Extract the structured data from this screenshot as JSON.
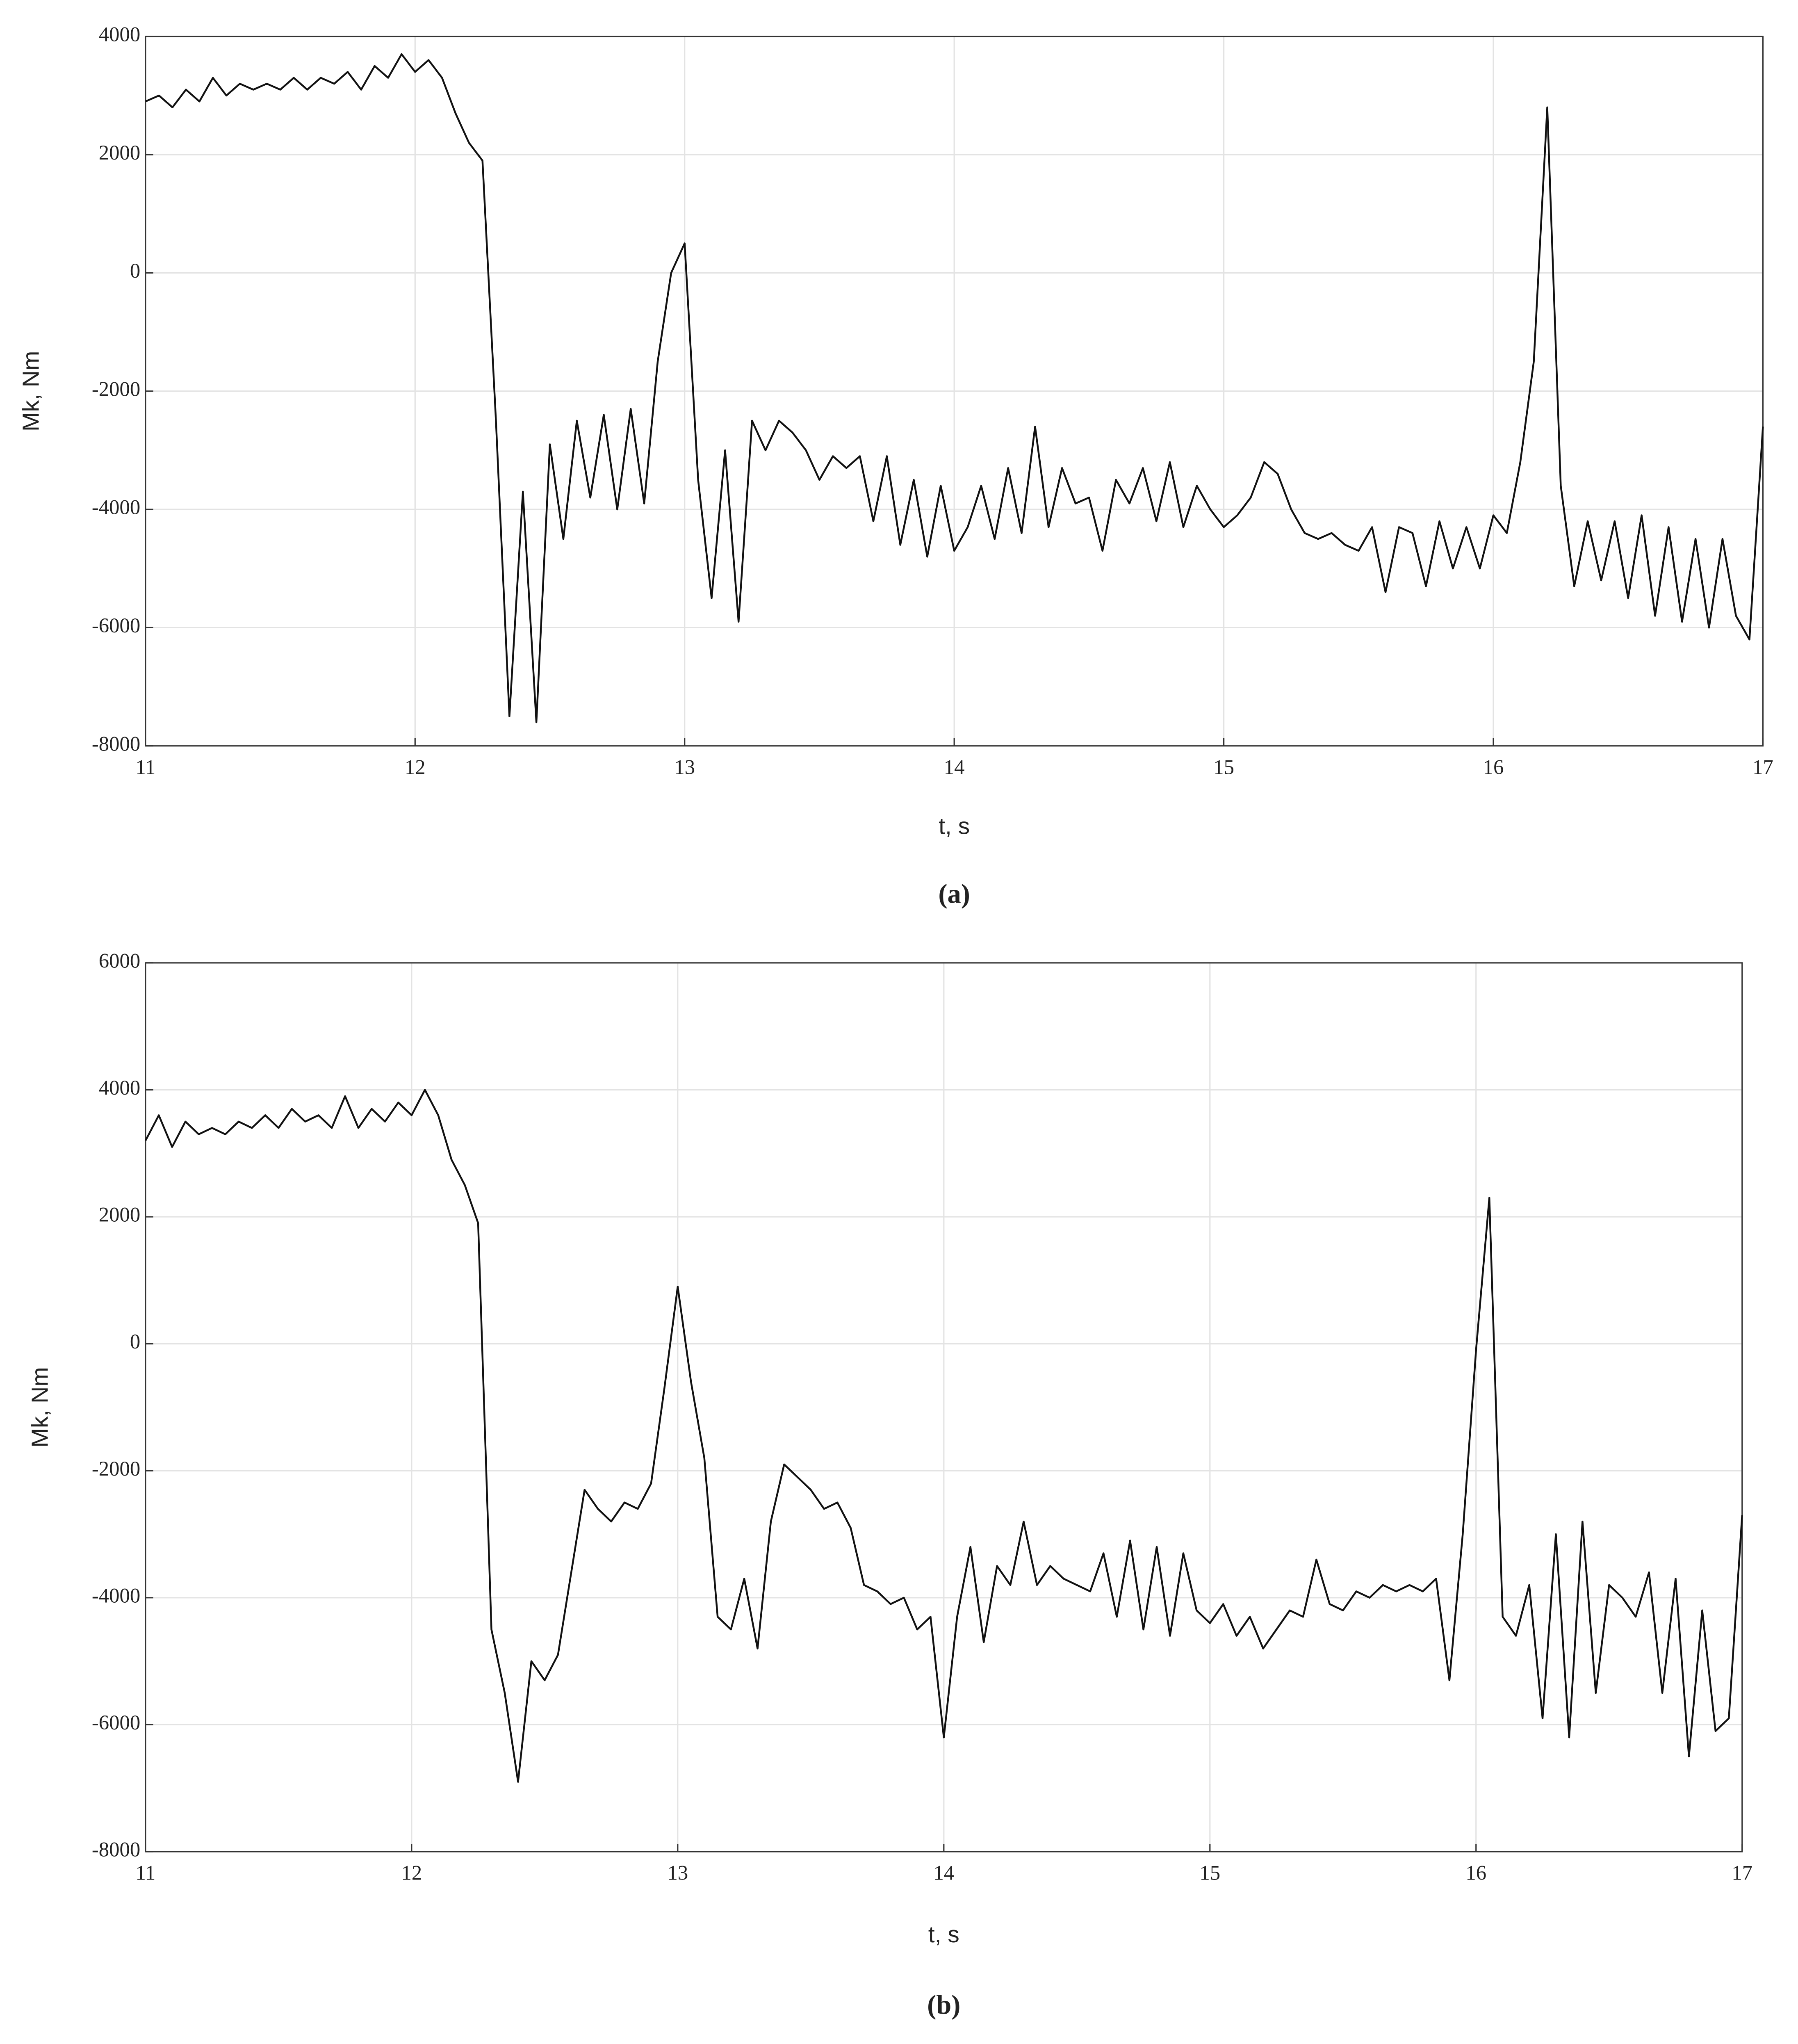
{
  "chart_data": [
    {
      "type": "line",
      "caption": "(a)",
      "x_label": "t, s",
      "y_label": "Mk, Nm",
      "xlim": [
        11,
        17
      ],
      "ylim": [
        -8000,
        4000
      ],
      "xticks": [
        11,
        12,
        13,
        14,
        15,
        16,
        17
      ],
      "yticks": [
        -8000,
        -6000,
        -4000,
        -2000,
        0,
        2000,
        4000
      ],
      "grid": true,
      "x": [
        11,
        11.05,
        11.1,
        11.15,
        11.2,
        11.25,
        11.3,
        11.35,
        11.4,
        11.45,
        11.5,
        11.55,
        11.6,
        11.65,
        11.7,
        11.75,
        11.8,
        11.85,
        11.9,
        11.95,
        12,
        12.05,
        12.1,
        12.15,
        12.2,
        12.25,
        12.3,
        12.35,
        12.4,
        12.45,
        12.5,
        12.55,
        12.6,
        12.65,
        12.7,
        12.75,
        12.8,
        12.85,
        12.9,
        12.95,
        13,
        13.05,
        13.1,
        13.15,
        13.2,
        13.25,
        13.3,
        13.35,
        13.4,
        13.45,
        13.5,
        13.55,
        13.6,
        13.65,
        13.7,
        13.75,
        13.8,
        13.85,
        13.9,
        13.95,
        14,
        14.05,
        14.1,
        14.15,
        14.2,
        14.25,
        14.3,
        14.35,
        14.4,
        14.45,
        14.5,
        14.55,
        14.6,
        14.65,
        14.7,
        14.75,
        14.8,
        14.85,
        14.9,
        14.95,
        15,
        15.05,
        15.1,
        15.15,
        15.2,
        15.25,
        15.3,
        15.35,
        15.4,
        15.45,
        15.5,
        15.55,
        15.6,
        15.65,
        15.7,
        15.75,
        15.8,
        15.85,
        15.9,
        15.95,
        16,
        16.05,
        16.1,
        16.15,
        16.2,
        16.25,
        16.3,
        16.35,
        16.4,
        16.45,
        16.5,
        16.55,
        16.6,
        16.65,
        16.7,
        16.75,
        16.8,
        16.85,
        16.9,
        16.95,
        17
      ],
      "series": [
        {
          "color": "#111111",
          "values": [
            2900,
            3000,
            2800,
            3100,
            2900,
            3300,
            3000,
            3200,
            3100,
            3200,
            3100,
            3300,
            3100,
            3300,
            3200,
            3400,
            3100,
            3500,
            3300,
            3700,
            3400,
            3600,
            3300,
            2700,
            2200,
            1900,
            -2500,
            -7500,
            -3700,
            -7600,
            -2900,
            -4500,
            -2500,
            -3800,
            -2400,
            -4000,
            -2300,
            -3900,
            -1500,
            0,
            500,
            -3500,
            -5500,
            -3000,
            -5900,
            -2500,
            -3000,
            -2500,
            -2700,
            -3000,
            -3500,
            -3100,
            -3300,
            -3100,
            -4200,
            -3100,
            -4600,
            -3500,
            -4800,
            -3600,
            -4700,
            -4300,
            -3600,
            -4500,
            -3300,
            -4400,
            -2600,
            -4300,
            -3300,
            -3900,
            -3800,
            -4700,
            -3500,
            -3900,
            -3300,
            -4200,
            -3200,
            -4300,
            -3600,
            -4000,
            -4300,
            -4100,
            -3800,
            -3200,
            -3400,
            -4000,
            -4400,
            -4500,
            -4400,
            -4600,
            -4700,
            -4300,
            -5400,
            -4300,
            -4400,
            -5300,
            -4200,
            -5000,
            -4300,
            -5000,
            -4100,
            -4400,
            -3200,
            -1500,
            2800,
            -3600,
            -5300,
            -4200,
            -5200,
            -4200,
            -5500,
            -4100,
            -5800,
            -4300,
            -5900,
            -4500,
            -6000,
            -4500,
            -5800,
            -6200,
            -2600
          ]
        }
      ]
    },
    {
      "type": "line",
      "caption": "(b)",
      "x_label": "t, s",
      "y_label": "Mk, Nm",
      "xlim": [
        11,
        17
      ],
      "ylim": [
        -8000,
        6000
      ],
      "xticks": [
        11,
        12,
        13,
        14,
        15,
        16,
        17
      ],
      "yticks": [
        -8000,
        -6000,
        -4000,
        -2000,
        0,
        2000,
        4000,
        6000
      ],
      "grid": true,
      "x": [
        11,
        11.05,
        11.1,
        11.15,
        11.2,
        11.25,
        11.3,
        11.35,
        11.4,
        11.45,
        11.5,
        11.55,
        11.6,
        11.65,
        11.7,
        11.75,
        11.8,
        11.85,
        11.9,
        11.95,
        12,
        12.05,
        12.1,
        12.15,
        12.2,
        12.25,
        12.3,
        12.35,
        12.4,
        12.45,
        12.5,
        12.55,
        12.6,
        12.65,
        12.7,
        12.75,
        12.8,
        12.85,
        12.9,
        12.95,
        13,
        13.05,
        13.1,
        13.15,
        13.2,
        13.25,
        13.3,
        13.35,
        13.4,
        13.45,
        13.5,
        13.55,
        13.6,
        13.65,
        13.7,
        13.75,
        13.8,
        13.85,
        13.9,
        13.95,
        14,
        14.05,
        14.1,
        14.15,
        14.2,
        14.25,
        14.3,
        14.35,
        14.4,
        14.45,
        14.5,
        14.55,
        14.6,
        14.65,
        14.7,
        14.75,
        14.8,
        14.85,
        14.9,
        14.95,
        15,
        15.05,
        15.1,
        15.15,
        15.2,
        15.25,
        15.3,
        15.35,
        15.4,
        15.45,
        15.5,
        15.55,
        15.6,
        15.65,
        15.7,
        15.75,
        15.8,
        15.85,
        15.9,
        15.95,
        16,
        16.05,
        16.1,
        16.15,
        16.2,
        16.25,
        16.3,
        16.35,
        16.4,
        16.45,
        16.5,
        16.55,
        16.6,
        16.65,
        16.7,
        16.75,
        16.8,
        16.85,
        16.9,
        16.95,
        17
      ],
      "series": [
        {
          "color": "#111111",
          "values": [
            3200,
            3600,
            3100,
            3500,
            3300,
            3400,
            3300,
            3500,
            3400,
            3600,
            3400,
            3700,
            3500,
            3600,
            3400,
            3900,
            3400,
            3700,
            3500,
            3800,
            3600,
            4000,
            3600,
            2900,
            2500,
            1900,
            -4500,
            -5500,
            -6900,
            -5000,
            -5300,
            -4900,
            -3600,
            -2300,
            -2600,
            -2800,
            -2500,
            -2600,
            -2200,
            -700,
            900,
            -600,
            -1800,
            -4300,
            -4500,
            -3700,
            -4800,
            -2800,
            -1900,
            -2100,
            -2300,
            -2600,
            -2500,
            -2900,
            -3800,
            -3900,
            -4100,
            -4000,
            -4500,
            -4300,
            -6200,
            -4300,
            -3200,
            -4700,
            -3500,
            -3800,
            -2800,
            -3800,
            -3500,
            -3700,
            -3800,
            -3900,
            -3300,
            -4300,
            -3100,
            -4500,
            -3200,
            -4600,
            -3300,
            -4200,
            -4400,
            -4100,
            -4600,
            -4300,
            -4800,
            -4500,
            -4200,
            -4300,
            -3400,
            -4100,
            -4200,
            -3900,
            -4000,
            -3800,
            -3900,
            -3800,
            -3900,
            -3700,
            -5300,
            -3000,
            -100,
            2300,
            -4300,
            -4600,
            -3800,
            -5900,
            -3000,
            -6200,
            -2800,
            -5500,
            -3800,
            -4000,
            -4300,
            -3600,
            -5500,
            -3700,
            -6500,
            -4200,
            -6100,
            -5900,
            -2700
          ]
        }
      ]
    }
  ]
}
